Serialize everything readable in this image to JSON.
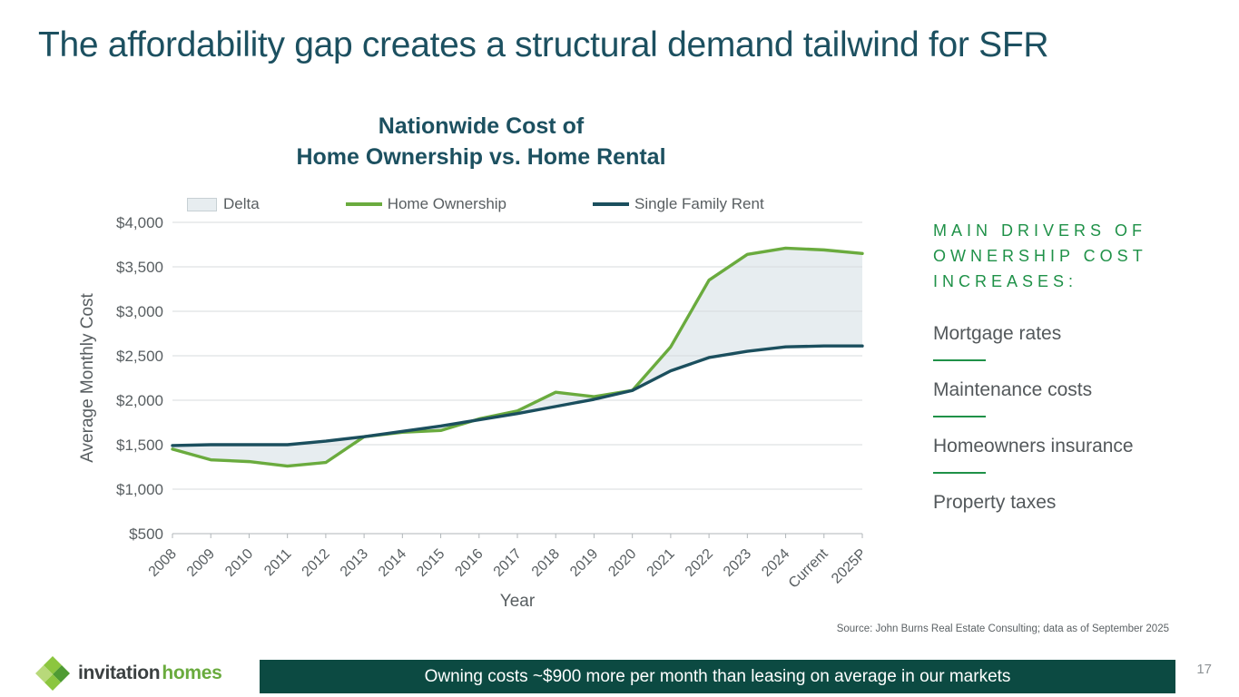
{
  "slide": {
    "title": "The affordability gap creates a structural demand tailwind for SFR",
    "page_number": "17",
    "source_note": "Source:  John Burns Real Estate Consulting; data as of September 2025",
    "banner_text": "Owning costs ~$900 more per month than leasing on average in our markets"
  },
  "logo": {
    "word1": "invitation",
    "word2": "homes"
  },
  "chart": {
    "title_line1": "Nationwide Cost of",
    "title_line2": "Home Ownership vs. Home Rental",
    "legend": [
      {
        "label": "Delta",
        "type": "area",
        "color": "#e7edf0"
      },
      {
        "label": "Home Ownership",
        "type": "line",
        "color": "#6aab3e"
      },
      {
        "label": "Single Family Rent",
        "type": "line",
        "color": "#1b4f5e"
      }
    ]
  },
  "drivers": {
    "heading_lines": [
      "MAIN DRIVERS OF",
      "OWNERSHIP COST",
      "INCREASES:"
    ],
    "items": [
      "Mortgage rates",
      "Maintenance costs",
      "Homeowners insurance",
      "Property taxes"
    ],
    "accent_color": "#1f9148"
  },
  "chart_data": {
    "type": "line",
    "title": "Nationwide Cost of Home Ownership vs. Home Rental",
    "xlabel": "Year",
    "ylabel": "Average Monthly Cost",
    "ylim": [
      500,
      4000
    ],
    "ytick_step": 500,
    "ytick_labels": [
      "$500",
      "$1,000",
      "$1,500",
      "$2,000",
      "$2,500",
      "$3,000",
      "$3,500",
      "$4,000"
    ],
    "grid": "horizontal",
    "legend_position": "top",
    "categories": [
      "2008",
      "2009",
      "2010",
      "2011",
      "2012",
      "2013",
      "2014",
      "2015",
      "2016",
      "2017",
      "2018",
      "2019",
      "2020",
      "2021",
      "2022",
      "2023",
      "2024",
      "Current",
      "2025P"
    ],
    "series": [
      {
        "name": "Home Ownership",
        "color": "#6aab3e",
        "values": [
          1450,
          1330,
          1310,
          1260,
          1300,
          1590,
          1640,
          1660,
          1790,
          1880,
          2090,
          2040,
          2110,
          2600,
          3350,
          3640,
          3710,
          3690,
          3650
        ]
      },
      {
        "name": "Single Family Rent",
        "color": "#1b4f5e",
        "values": [
          1490,
          1500,
          1500,
          1500,
          1540,
          1590,
          1650,
          1710,
          1780,
          1850,
          1930,
          2010,
          2110,
          2330,
          2480,
          2550,
          2600,
          2610,
          2610
        ]
      }
    ],
    "delta": {
      "name": "Delta",
      "fill": "#e7edf0"
    }
  }
}
